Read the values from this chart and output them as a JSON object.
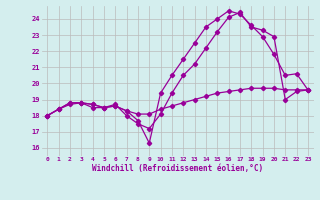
{
  "line1_x": [
    0,
    1,
    2,
    3,
    4,
    5,
    6,
    7,
    8,
    9,
    10,
    11,
    12,
    13,
    14,
    15,
    16,
    17,
    18,
    19,
    20,
    21,
    22,
    23
  ],
  "line1_y": [
    18.0,
    18.4,
    18.8,
    18.8,
    18.5,
    18.5,
    18.6,
    18.3,
    17.7,
    16.3,
    19.4,
    20.5,
    21.5,
    22.5,
    23.5,
    24.0,
    24.5,
    24.3,
    23.6,
    22.9,
    21.8,
    20.5,
    20.6,
    19.6
  ],
  "line2_x": [
    0,
    1,
    2,
    3,
    4,
    5,
    6,
    7,
    8,
    9,
    10,
    11,
    12,
    13,
    14,
    15,
    16,
    17,
    18,
    19,
    20,
    21,
    22,
    23
  ],
  "line2_y": [
    18.0,
    18.4,
    18.8,
    18.8,
    18.7,
    18.5,
    18.7,
    18.0,
    17.5,
    17.2,
    18.1,
    19.4,
    20.5,
    21.2,
    22.2,
    23.2,
    24.1,
    24.4,
    23.5,
    23.3,
    22.9,
    19.0,
    19.5,
    19.6
  ],
  "line3_x": [
    0,
    1,
    2,
    3,
    4,
    5,
    6,
    7,
    8,
    9,
    10,
    11,
    12,
    13,
    14,
    15,
    16,
    17,
    18,
    19,
    20,
    21,
    22,
    23
  ],
  "line3_y": [
    18.0,
    18.4,
    18.7,
    18.8,
    18.7,
    18.5,
    18.6,
    18.3,
    18.1,
    18.1,
    18.4,
    18.6,
    18.8,
    19.0,
    19.2,
    19.4,
    19.5,
    19.6,
    19.7,
    19.7,
    19.7,
    19.6,
    19.6,
    19.6
  ],
  "line_color": "#990099",
  "bg_color": "#d4eeee",
  "grid_color": "#bbbbbb",
  "xlabel": "Windchill (Refroidissement éolien,°C)",
  "ylim": [
    15.5,
    24.8
  ],
  "xlim": [
    -0.5,
    23.5
  ],
  "yticks": [
    16,
    17,
    18,
    19,
    20,
    21,
    22,
    23,
    24
  ],
  "xticks": [
    0,
    1,
    2,
    3,
    4,
    5,
    6,
    7,
    8,
    9,
    10,
    11,
    12,
    13,
    14,
    15,
    16,
    17,
    18,
    19,
    20,
    21,
    22,
    23
  ],
  "marker": "D",
  "markersize": 2.2,
  "linewidth": 0.9
}
